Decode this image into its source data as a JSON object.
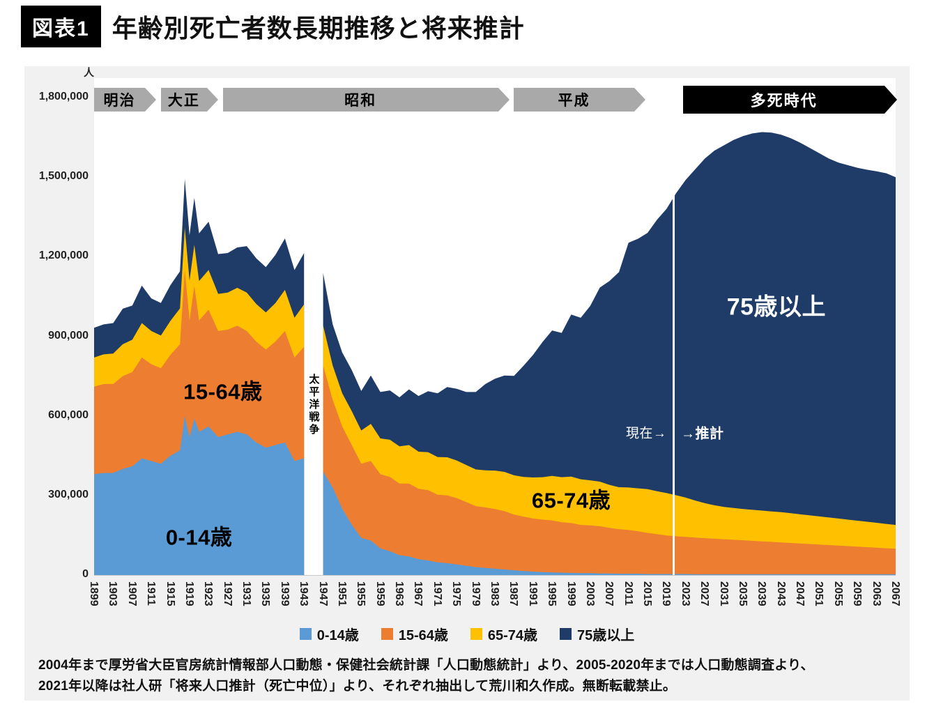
{
  "header": {
    "badge": "図表1",
    "title": "年齢別死亡者数長期推移と将来推計"
  },
  "chart_data": {
    "type": "area",
    "stacked": true,
    "title": "年齢別死亡者数長期推移と将来推計",
    "unit_label": "人",
    "ylim": [
      0,
      1800000
    ],
    "x_range": [
      1899,
      2067
    ],
    "grid": false,
    "legend_position": "bottom",
    "data_gap_years": [
      1944,
      1945,
      1946
    ],
    "divider_year": 2020.5,
    "yticks": [
      {
        "value": 0,
        "label": "0"
      },
      {
        "value": 300000,
        "label": "300,000"
      },
      {
        "value": 600000,
        "label": "600,000"
      },
      {
        "value": 900000,
        "label": "900,000"
      },
      {
        "value": 1200000,
        "label": "1,200,000"
      },
      {
        "value": 1500000,
        "label": "1,500,000"
      },
      {
        "value": 1800000,
        "label": "1,800,000"
      }
    ],
    "xtick_years": [
      1899,
      1903,
      1907,
      1911,
      1915,
      1919,
      1923,
      1927,
      1931,
      1935,
      1939,
      1943,
      1947,
      1951,
      1955,
      1959,
      1963,
      1967,
      1971,
      1975,
      1979,
      1983,
      1987,
      1991,
      1995,
      1999,
      2003,
      2007,
      2011,
      2015,
      2019,
      2023,
      2027,
      2031,
      2035,
      2039,
      2043,
      2047,
      2051,
      2055,
      2059,
      2063,
      2067
    ],
    "series_meta": [
      {
        "key": "age_0_14",
        "name": "0-14歳",
        "color": "#5B9BD5"
      },
      {
        "key": "age_15_64",
        "name": "15-64歳",
        "color": "#ED7D31"
      },
      {
        "key": "age_65_74",
        "name": "65-74歳",
        "color": "#FFC000"
      },
      {
        "key": "age_75_plus",
        "name": "75歳以上",
        "color": "#1F3C68"
      }
    ],
    "segments": [
      {
        "label": "1899-1943",
        "years": [
          1899,
          1901,
          1903,
          1905,
          1907,
          1909,
          1911,
          1913,
          1915,
          1917,
          1918,
          1919,
          1920,
          1921,
          1923,
          1925,
          1927,
          1929,
          1931,
          1933,
          1935,
          1937,
          1939,
          1941,
          1943
        ],
        "values": {
          "age_0_14": [
            380000,
            385000,
            385000,
            400000,
            410000,
            440000,
            430000,
            420000,
            450000,
            470000,
            600000,
            520000,
            590000,
            540000,
            560000,
            520000,
            530000,
            540000,
            530000,
            500000,
            480000,
            490000,
            500000,
            430000,
            440000
          ],
          "age_15_64": [
            330000,
            335000,
            335000,
            350000,
            355000,
            380000,
            365000,
            360000,
            380000,
            400000,
            550000,
            440000,
            500000,
            420000,
            440000,
            400000,
            395000,
            400000,
            390000,
            380000,
            370000,
            390000,
            420000,
            390000,
            420000
          ],
          "age_65_74": [
            110000,
            112000,
            115000,
            120000,
            122000,
            130000,
            125000,
            123000,
            128000,
            135000,
            160000,
            150000,
            155000,
            148000,
            150000,
            140000,
            140000,
            143000,
            145000,
            142000,
            140000,
            145000,
            155000,
            150000,
            160000
          ],
          "age_75_plus": [
            112000,
            113000,
            115000,
            134000,
            129000,
            141000,
            123000,
            123000,
            135000,
            140000,
            183000,
            171000,
            177000,
            180000,
            182000,
            150000,
            149000,
            152000,
            175000,
            172000,
            171000,
            182000,
            194000,
            180000,
            194000
          ]
        }
      },
      {
        "label": "1947-2067",
        "years": [
          1947,
          1949,
          1951,
          1953,
          1955,
          1957,
          1959,
          1961,
          1963,
          1965,
          1967,
          1969,
          1971,
          1973,
          1975,
          1977,
          1979,
          1981,
          1983,
          1985,
          1987,
          1989,
          1991,
          1993,
          1995,
          1997,
          1999,
          2001,
          2003,
          2005,
          2007,
          2009,
          2011,
          2013,
          2015,
          2017,
          2019,
          2021,
          2023,
          2025,
          2027,
          2029,
          2031,
          2033,
          2035,
          2037,
          2039,
          2041,
          2043,
          2045,
          2047,
          2049,
          2051,
          2053,
          2055,
          2057,
          2059,
          2061,
          2063,
          2065,
          2067
        ],
        "values": {
          "age_0_14": [
            390000,
            330000,
            250000,
            190000,
            140000,
            130000,
            100000,
            90000,
            75000,
            70000,
            60000,
            55000,
            48000,
            45000,
            40000,
            35000,
            30000,
            27000,
            24000,
            21000,
            18000,
            15000,
            13000,
            11000,
            10000,
            9000,
            8000,
            7000,
            7000,
            6000,
            6000,
            5000,
            5000,
            5000,
            4000,
            4000,
            4000,
            4000,
            4000,
            3000,
            3000,
            3000,
            3000,
            3000,
            3000,
            3000,
            3000,
            3000,
            3000,
            3000,
            3000,
            3000,
            3000,
            3000,
            3000,
            3000,
            3000,
            3000,
            3000,
            3000,
            3000
          ],
          "age_15_64": [
            400000,
            330000,
            310000,
            300000,
            280000,
            300000,
            280000,
            280000,
            270000,
            275000,
            265000,
            265000,
            255000,
            255000,
            250000,
            240000,
            230000,
            228000,
            225000,
            220000,
            210000,
            205000,
            200000,
            198000,
            196000,
            190000,
            188000,
            182000,
            180000,
            178000,
            172000,
            168000,
            165000,
            160000,
            155000,
            150000,
            145000,
            142000,
            140000,
            138000,
            136000,
            134000,
            132000,
            130000,
            128000,
            126000,
            124000,
            122000,
            120000,
            118000,
            116000,
            114000,
            112000,
            110000,
            108000,
            106000,
            104000,
            102000,
            100000,
            98000,
            96000
          ],
          "age_65_74": [
            150000,
            130000,
            125000,
            128000,
            125000,
            140000,
            135000,
            140000,
            140000,
            145000,
            140000,
            143000,
            142000,
            144000,
            142000,
            140000,
            138000,
            140000,
            145000,
            148000,
            148000,
            150000,
            155000,
            160000,
            168000,
            170000,
            175000,
            172000,
            170000,
            168000,
            162000,
            158000,
            160000,
            162000,
            165000,
            162000,
            160000,
            155000,
            148000,
            140000,
            132000,
            126000,
            122000,
            120000,
            118000,
            117000,
            116000,
            115000,
            114000,
            112000,
            110000,
            108000,
            106000,
            104000,
            102000,
            100000,
            98000,
            96000,
            94000,
            92000,
            90000
          ],
          "age_75_plus": [
            198000,
            155000,
            154000,
            155000,
            149000,
            182000,
            175000,
            186000,
            185000,
            210000,
            210000,
            230000,
            240000,
            265000,
            270000,
            275000,
            292000,
            325000,
            346000,
            363000,
            375000,
            419000,
            462000,
            510000,
            548000,
            544000,
            611000,
            609000,
            658000,
            732000,
            768000,
            811000,
            923000,
            941000,
            966000,
            1024000,
            1072000,
            1139000,
            1198000,
            1249000,
            1299000,
            1337000,
            1363000,
            1387000,
            1406000,
            1419000,
            1427000,
            1428000,
            1423000,
            1414000,
            1401000,
            1385000,
            1369000,
            1353000,
            1342000,
            1336000,
            1330000,
            1327000,
            1325000,
            1322000,
            1311000
          ]
        }
      }
    ],
    "eras": [
      {
        "id": "meiji",
        "label": "明治",
        "start": 1899,
        "end": 1912,
        "color": "#A9A9A9",
        "text_color": "#000000",
        "emphasis": false
      },
      {
        "id": "taisho",
        "label": "大正",
        "start": 1913,
        "end": 1925,
        "color": "#A9A9A9",
        "text_color": "#000000",
        "emphasis": false
      },
      {
        "id": "showa",
        "label": "昭和",
        "start": 1926,
        "end": 1986,
        "color": "#A9A9A9",
        "text_color": "#000000",
        "emphasis": false
      },
      {
        "id": "heisei",
        "label": "平成",
        "start": 1987,
        "end": 2014.5,
        "color": "#A9A9A9",
        "text_color": "#000000",
        "emphasis": false
      },
      {
        "id": "tashi-jidai",
        "label": "多死時代",
        "start": 2022.5,
        "end": 2067,
        "color": "#000000",
        "text_color": "#ffffff",
        "emphasis": true
      }
    ],
    "annotations": [
      {
        "id": "area-label-0-14",
        "text": "0-14歳",
        "year": 1921,
        "value": 150000,
        "color": "#000000",
        "font_size": 31,
        "weight": "700"
      },
      {
        "id": "area-label-15-64",
        "text": "15-64歳",
        "year": 1926,
        "value": 700000,
        "color": "#000000",
        "font_size": 31,
        "weight": "700"
      },
      {
        "id": "area-label-65-74",
        "text": "65-74歳",
        "year": 1999,
        "value": 290000,
        "color": "#000000",
        "font_size": 31,
        "weight": "700"
      },
      {
        "id": "area-label-75-plus",
        "text": "75歳以上",
        "year": 2042,
        "value": 1020000,
        "color": "#ffffff",
        "font_size": 34,
        "weight": "700"
      },
      {
        "id": "pacific-war-label",
        "text": "太平洋戦争",
        "year": 1945,
        "value": 640000,
        "color": "#000000",
        "font_size": 15,
        "weight": "700",
        "vertical": true
      },
      {
        "id": "current-label",
        "text": "現在→",
        "year": 2019,
        "value": 540000,
        "color": "#ffffff",
        "font_size": 19,
        "weight": "400",
        "align": "right"
      },
      {
        "id": "projection-label",
        "text": "→推計",
        "year": 2022,
        "value": 540000,
        "color": "#ffffff",
        "font_size": 20,
        "weight": "700",
        "align": "left"
      }
    ]
  },
  "legend": {
    "items": [
      {
        "key": "age_0_14",
        "label": "0-14歳",
        "color": "#5B9BD5"
      },
      {
        "key": "age_15_64",
        "label": "15-64歳",
        "color": "#ED7D31"
      },
      {
        "key": "age_65_74",
        "label": "65-74歳",
        "color": "#FFC000"
      },
      {
        "key": "age_75_plus",
        "label": "75歳以上",
        "color": "#1F3C68"
      }
    ]
  },
  "source_lines": [
    "2004年まで厚労省大臣官房統計情報部人口動態・保健社会統計課「人口動態統計」より、2005-2020年までは人口動態調査より、",
    "2021年以降は社人研「将来人口推計（死亡中位）」より、それぞれ抽出して荒川和久作成。無断転載禁止。"
  ]
}
